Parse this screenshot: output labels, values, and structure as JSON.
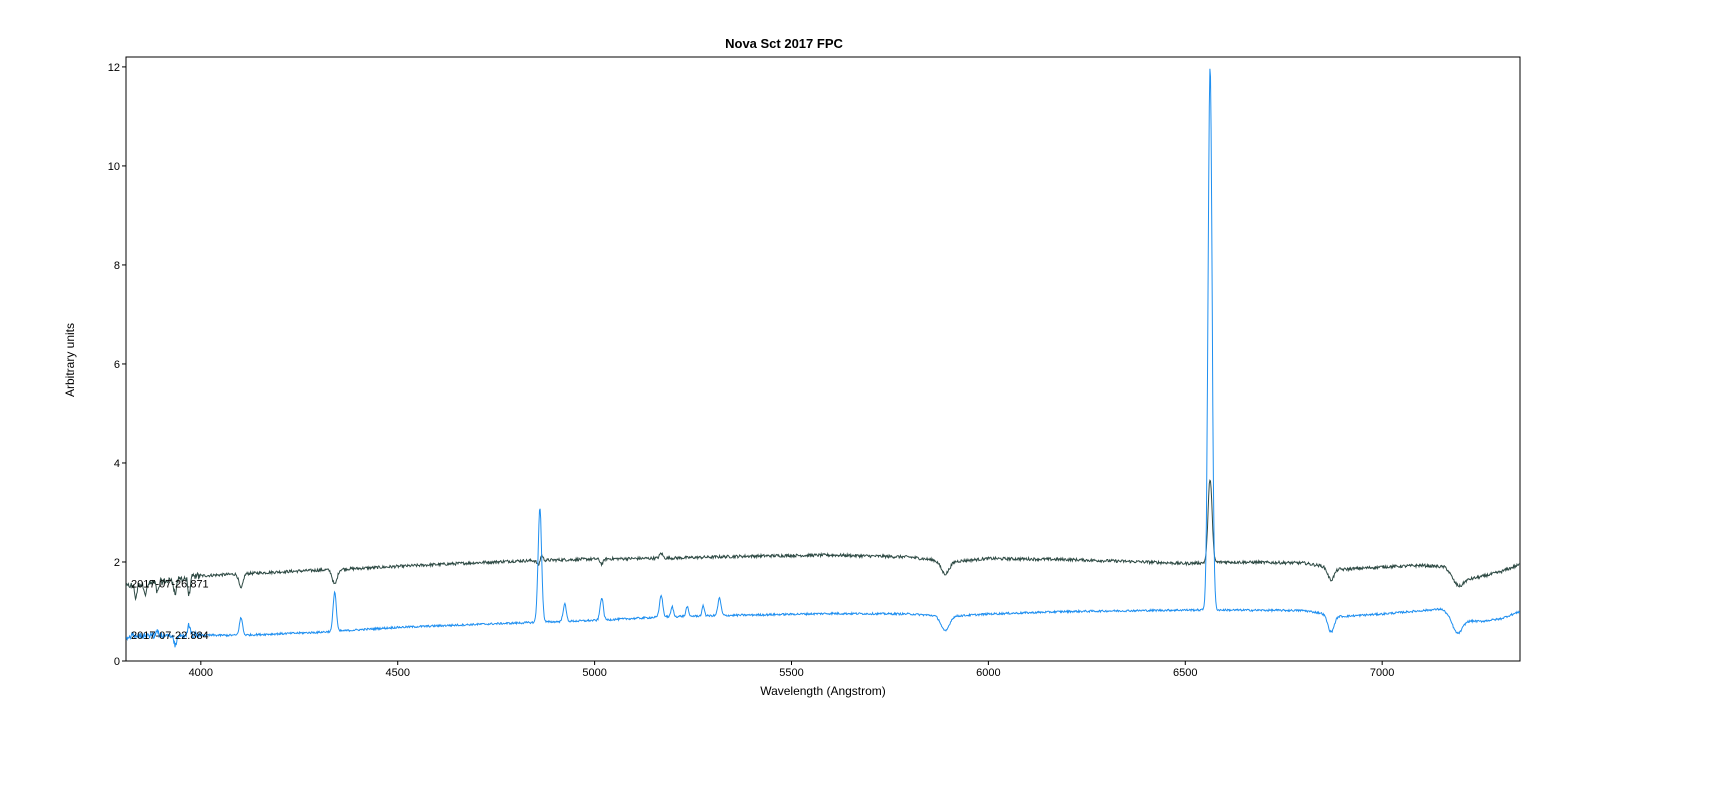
{
  "chart_data": {
    "type": "line",
    "title": "Nova Sct 2017   FPC",
    "xlabel": "Wavelength (Angstrom)",
    "ylabel": "Arbitrary units",
    "xlim": [
      3810,
      7350
    ],
    "ylim": [
      0,
      12.2
    ],
    "xticks": [
      4000,
      4500,
      5000,
      5500,
      6000,
      6500,
      7000
    ],
    "yticks": [
      0,
      2,
      4,
      6,
      8,
      10,
      12
    ],
    "grid": false,
    "legend": "none",
    "series": [
      {
        "name": "2017-07-26.871",
        "color": "#2e4a44",
        "baseline": [
          [
            3810,
            1.5
          ],
          [
            3900,
            1.6
          ],
          [
            4000,
            1.72
          ],
          [
            4200,
            1.8
          ],
          [
            4400,
            1.87
          ],
          [
            4600,
            1.95
          ],
          [
            4800,
            2.02
          ],
          [
            5000,
            2.06
          ],
          [
            5200,
            2.08
          ],
          [
            5400,
            2.12
          ],
          [
            5600,
            2.14
          ],
          [
            5800,
            2.1
          ],
          [
            5900,
            2.0
          ],
          [
            6000,
            2.07
          ],
          [
            6200,
            2.05
          ],
          [
            6400,
            2.0
          ],
          [
            6500,
            1.97
          ],
          [
            6600,
            2.0
          ],
          [
            6800,
            1.98
          ],
          [
            6900,
            1.85
          ],
          [
            7000,
            1.9
          ],
          [
            7100,
            1.93
          ],
          [
            7160,
            1.9
          ],
          [
            7200,
            1.62
          ],
          [
            7250,
            1.7
          ],
          [
            7300,
            1.8
          ],
          [
            7350,
            1.95
          ]
        ],
        "lines": [
          [
            3835,
            -0.25,
            3
          ],
          [
            3860,
            -0.2,
            3
          ],
          [
            3890,
            -0.2,
            3
          ],
          [
            3935,
            -0.3,
            3
          ],
          [
            3970,
            -0.35,
            3
          ],
          [
            4102,
            -0.3,
            5
          ],
          [
            4340,
            -0.3,
            6
          ],
          [
            4861,
            -0.2,
            5
          ],
          [
            4864,
            0.25,
            4
          ],
          [
            5018,
            -0.1,
            4
          ],
          [
            5169,
            0.1,
            4
          ],
          [
            5890,
            -0.25,
            10
          ],
          [
            6563,
            1.7,
            5
          ],
          [
            6870,
            -0.25,
            8
          ],
          [
            7190,
            -0.15,
            12
          ]
        ],
        "noise": 0.03
      },
      {
        "name": "2017-07-22.884",
        "color": "#1f8ff0",
        "baseline": [
          [
            3810,
            0.5
          ],
          [
            3900,
            0.5
          ],
          [
            4000,
            0.52
          ],
          [
            4100,
            0.52
          ],
          [
            4300,
            0.58
          ],
          [
            4500,
            0.68
          ],
          [
            4700,
            0.74
          ],
          [
            4850,
            0.78
          ],
          [
            5000,
            0.82
          ],
          [
            5200,
            0.9
          ],
          [
            5400,
            0.93
          ],
          [
            5600,
            0.96
          ],
          [
            5800,
            0.95
          ],
          [
            5900,
            0.9
          ],
          [
            6000,
            0.95
          ],
          [
            6200,
            1.0
          ],
          [
            6400,
            1.02
          ],
          [
            6500,
            1.03
          ],
          [
            6600,
            1.03
          ],
          [
            6800,
            1.02
          ],
          [
            6900,
            0.9
          ],
          [
            7000,
            0.95
          ],
          [
            7150,
            1.05
          ],
          [
            7200,
            0.82
          ],
          [
            7250,
            0.8
          ],
          [
            7300,
            0.85
          ],
          [
            7350,
            1.0
          ]
        ],
        "lines": [
          [
            3890,
            0.15,
            2
          ],
          [
            3935,
            -0.2,
            3
          ],
          [
            3970,
            0.2,
            3
          ],
          [
            4102,
            0.35,
            4
          ],
          [
            4340,
            0.8,
            4
          ],
          [
            4861,
            2.3,
            4.5
          ],
          [
            4924,
            0.35,
            4
          ],
          [
            5018,
            0.45,
            4
          ],
          [
            5169,
            0.45,
            4
          ],
          [
            5197,
            0.2,
            3
          ],
          [
            5235,
            0.2,
            3
          ],
          [
            5276,
            0.2,
            3
          ],
          [
            5317,
            0.35,
            4
          ],
          [
            5890,
            -0.3,
            10
          ],
          [
            6563,
            11.0,
            5
          ],
          [
            6870,
            -0.35,
            8
          ],
          [
            7190,
            -0.3,
            12
          ]
        ],
        "noise": 0.02
      }
    ]
  }
}
